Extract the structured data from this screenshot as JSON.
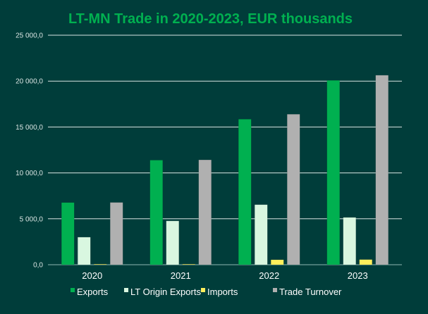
{
  "chart_data": {
    "type": "bar",
    "title": "LT-MN Trade in 2020-2023, EUR thousands",
    "xlabel": "",
    "ylabel": "",
    "ylim": [
      0,
      25000
    ],
    "yticks": [
      0,
      5000,
      10000,
      15000,
      20000,
      25000
    ],
    "ytick_labels": [
      "0,0",
      "5 000,0",
      "10 000,0",
      "15 000,0",
      "20 000,0",
      "25 000,0"
    ],
    "grid": true,
    "legend_position": "bottom",
    "categories": [
      "2020",
      "2021",
      "2022",
      "2023"
    ],
    "series": [
      {
        "name": "Exports",
        "color": "#00b050",
        "values": [
          6770,
          11390,
          15850,
          20080
        ]
      },
      {
        "name": "LT Origin Exports",
        "color": "#d9f7e0",
        "values": [
          3000,
          4770,
          6540,
          5150
        ]
      },
      {
        "name": "Imports",
        "color": "#ffef5c",
        "values": [
          10,
          30,
          540,
          560
        ]
      },
      {
        "name": "Trade Turnover",
        "color": "#b0b0b0",
        "values": [
          6780,
          11420,
          16390,
          20640
        ]
      }
    ]
  }
}
